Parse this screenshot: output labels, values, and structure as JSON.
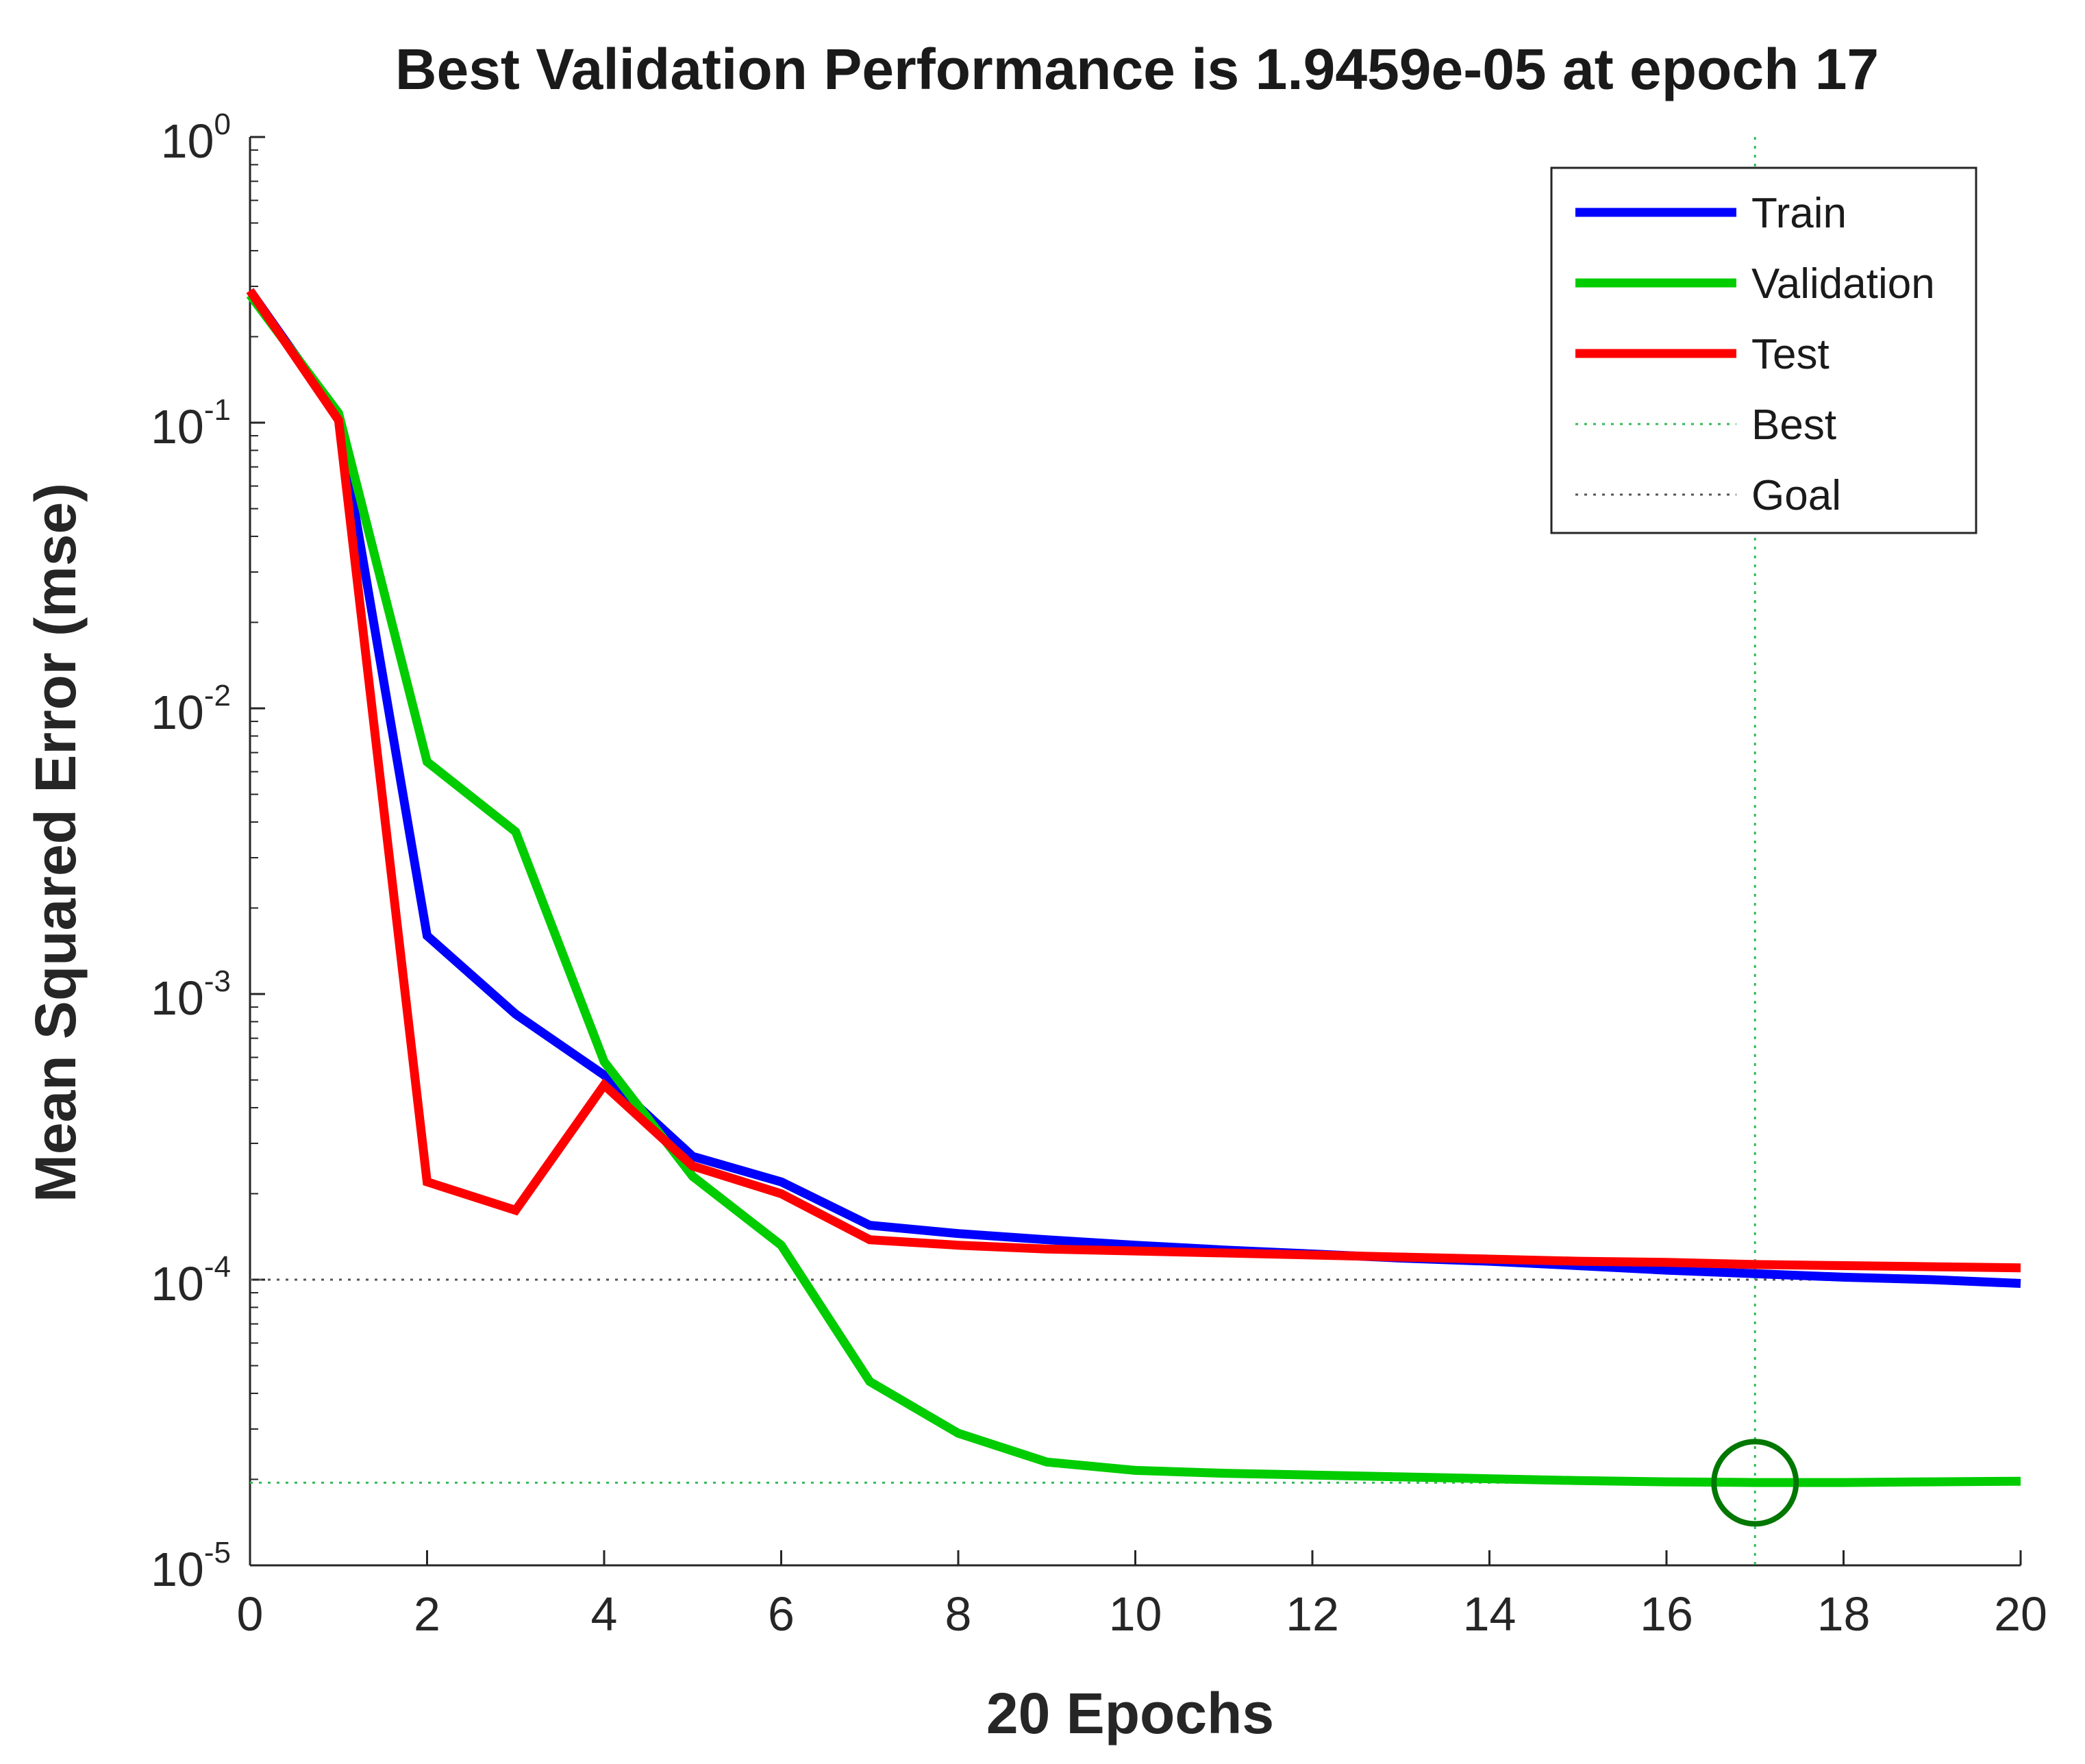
{
  "chart_data": {
    "type": "line",
    "title": "Best Validation Performance is 1.9459e-05 at epoch 17",
    "xlabel": "20 Epochs",
    "ylabel": "Mean Squared Error  (mse)",
    "xlim": [
      0,
      20
    ],
    "ylim": [
      1e-05,
      1
    ],
    "yscale": "log",
    "x_ticks": [
      0,
      2,
      4,
      6,
      8,
      10,
      12,
      14,
      16,
      18,
      20
    ],
    "y_ticks": [
      {
        "value": 1,
        "base": "10",
        "exp": "0"
      },
      {
        "value": 0.1,
        "base": "10",
        "exp": "-1"
      },
      {
        "value": 0.01,
        "base": "10",
        "exp": "-2"
      },
      {
        "value": 0.001,
        "base": "10",
        "exp": "-3"
      },
      {
        "value": 0.0001,
        "base": "10",
        "exp": "-4"
      },
      {
        "value": 1e-05,
        "base": "10",
        "exp": "-5"
      }
    ],
    "x": [
      0,
      1,
      2,
      3,
      4,
      5,
      6,
      7,
      8,
      9,
      10,
      11,
      12,
      13,
      14,
      15,
      16,
      17,
      18,
      19,
      20
    ],
    "series": [
      {
        "name": "Train",
        "color": "#0000ff",
        "style": "solid",
        "values": [
          0.29,
          0.105,
          0.0016,
          0.00085,
          0.00052,
          0.00027,
          0.00022,
          0.000155,
          0.000145,
          0.000138,
          0.000132,
          0.000127,
          0.000123,
          0.000119,
          0.000116,
          0.000112,
          0.000108,
          0.000105,
          0.000102,
          0.0001,
          9.7e-05
        ]
      },
      {
        "name": "Validation",
        "color": "#00cc00",
        "style": "solid",
        "values": [
          0.28,
          0.108,
          0.0065,
          0.0037,
          0.00058,
          0.00023,
          0.000132,
          4.4e-05,
          2.9e-05,
          2.3e-05,
          2.15e-05,
          2.1e-05,
          2.07e-05,
          2.04e-05,
          2.01e-05,
          1.98e-05,
          1.96e-05,
          1.95e-05,
          1.95e-05,
          1.96e-05,
          1.97e-05
        ]
      },
      {
        "name": "Test",
        "color": "#ff0000",
        "style": "solid",
        "values": [
          0.29,
          0.102,
          0.00022,
          0.000175,
          0.00048,
          0.00025,
          0.0002,
          0.000138,
          0.000132,
          0.000128,
          0.000126,
          0.000124,
          0.000122,
          0.00012,
          0.000118,
          0.000116,
          0.000115,
          0.000113,
          0.000112,
          0.000111,
          0.00011
        ]
      }
    ],
    "best": {
      "label": "Best",
      "epoch": 17,
      "value": 1.9459e-05,
      "color": "#33bb55",
      "marker_color": "#007700"
    },
    "goal": {
      "label": "Goal",
      "value": 0.0001,
      "color": "#555555"
    },
    "legend": {
      "position": "top-right",
      "entries": [
        {
          "name": "Train",
          "color": "#0000ff",
          "style": "solid"
        },
        {
          "name": "Validation",
          "color": "#00cc00",
          "style": "solid"
        },
        {
          "name": "Test",
          "color": "#ff0000",
          "style": "solid"
        },
        {
          "name": "Best",
          "color": "#33bb55",
          "style": "dotted"
        },
        {
          "name": "Goal",
          "color": "#555555",
          "style": "dotted"
        }
      ]
    },
    "grid": false
  }
}
